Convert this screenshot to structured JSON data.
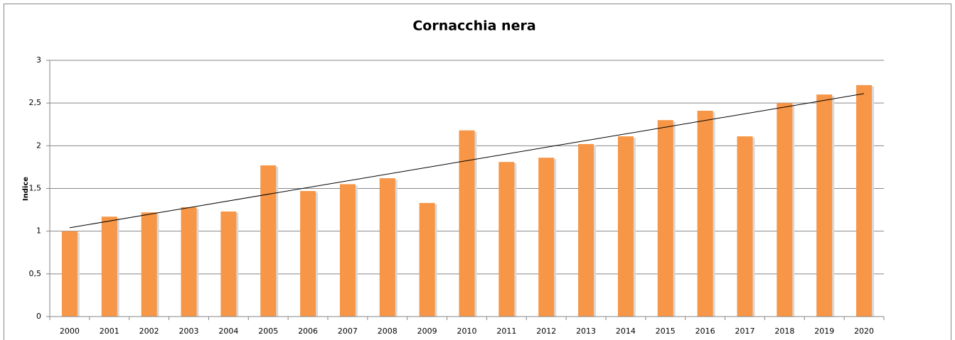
{
  "chart_data": {
    "type": "bar",
    "title": "Cornacchia nera",
    "y_label": "Indice",
    "categories": [
      "2000",
      "2001",
      "2002",
      "2003",
      "2004",
      "2005",
      "2006",
      "2007",
      "2008",
      "2009",
      "2010",
      "2011",
      "2012",
      "2013",
      "2014",
      "2015",
      "2016",
      "2017",
      "2018",
      "2019",
      "2020"
    ],
    "values": [
      1.0,
      1.17,
      1.22,
      1.28,
      1.23,
      1.77,
      1.47,
      1.55,
      1.62,
      1.33,
      2.18,
      1.81,
      1.86,
      2.02,
      2.11,
      2.3,
      2.41,
      2.11,
      2.5,
      2.6,
      2.71
    ],
    "color": "#f79646",
    "trend": [
      1.04,
      2.61
    ],
    "trend_color": "#000000",
    "ylim": [
      0,
      3
    ],
    "yticks": [
      0,
      {
        "value": 0.5,
        "label": "0,5"
      },
      1,
      {
        "value": 1.5,
        "label": "1,5"
      },
      2,
      {
        "value": 2.5,
        "label": "2,5"
      },
      3
    ],
    "grid": true
  }
}
